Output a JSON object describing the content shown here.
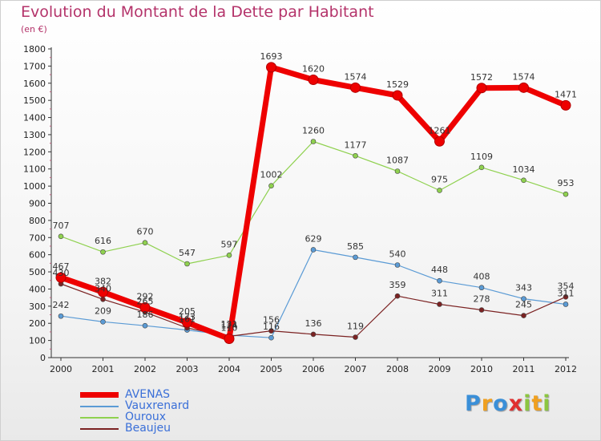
{
  "chart_data": {
    "type": "line",
    "title": "Evolution du Montant de la Dette par Habitant",
    "subtitle": "(en €)",
    "x": [
      "2000",
      "2001",
      "2002",
      "2003",
      "2004",
      "2005",
      "2006",
      "2007",
      "2008",
      "2009",
      "2010",
      "2011",
      "2012"
    ],
    "ylim": [
      0,
      1800
    ],
    "yticks": [
      0,
      100,
      200,
      300,
      400,
      500,
      600,
      700,
      800,
      900,
      1000,
      1100,
      1200,
      1300,
      1400,
      1500,
      1600,
      1700,
      1800
    ],
    "grid": false,
    "legend_position": "bottom-left",
    "series": [
      {
        "name": "AVENAS",
        "color": "#ee0000",
        "values": [
          467,
          382,
          292,
          205,
          110,
          1693,
          1620,
          1574,
          1529,
          1261,
          1572,
          1574,
          1471
        ]
      },
      {
        "name": "Vauxrenard",
        "color": "#5b9bd5",
        "values": [
          242,
          209,
          186,
          161,
          131,
          116,
          629,
          585,
          540,
          448,
          408,
          343,
          311
        ]
      },
      {
        "name": "Ouroux",
        "color": "#8fd14f",
        "values": [
          707,
          616,
          670,
          547,
          597,
          1002,
          1260,
          1177,
          1087,
          975,
          1109,
          1034,
          953
        ]
      },
      {
        "name": "Beaujeu",
        "color": "#7b2222",
        "values": [
          430,
          340,
          265,
          173,
          124,
          156,
          136,
          119,
          359,
          311,
          278,
          245,
          354
        ]
      }
    ]
  },
  "logo": {
    "letters": [
      "P",
      "r",
      "o",
      "x",
      "i",
      "t",
      "i"
    ],
    "colors": [
      "#3a8fd8",
      "#f0a020",
      "#3a8fd8",
      "#e03030",
      "#8cc63f",
      "#f0a020",
      "#8cc63f"
    ]
  }
}
